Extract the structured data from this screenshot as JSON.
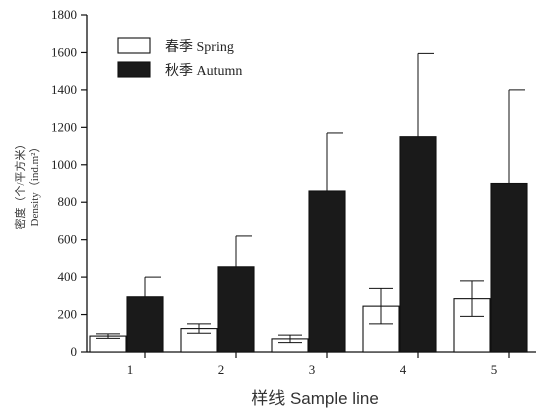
{
  "chart_data": {
    "type": "bar",
    "categories": [
      "1",
      "2",
      "3",
      "4",
      "5"
    ],
    "series": [
      {
        "name": "春季 Spring",
        "values": [
          85,
          125,
          70,
          245,
          285
        ],
        "errors": [
          12,
          25,
          20,
          95,
          95
        ],
        "color": "#ffffff"
      },
      {
        "name": "秋季 Autumn",
        "values": [
          295,
          455,
          860,
          1150,
          900
        ],
        "errors": [
          105,
          165,
          310,
          445,
          500
        ],
        "color": "#1a1a1a"
      }
    ],
    "xlabel": "样线  Sample line",
    "ylabel_line1": "密度（个/平方米）",
    "ylabel_line2": "Density（ind.m²）",
    "ylim": [
      0,
      1800
    ],
    "yticks": [
      0,
      200,
      400,
      600,
      800,
      1000,
      1200,
      1400,
      1600,
      1800
    ],
    "legend_position": "top-left",
    "grid": false
  }
}
